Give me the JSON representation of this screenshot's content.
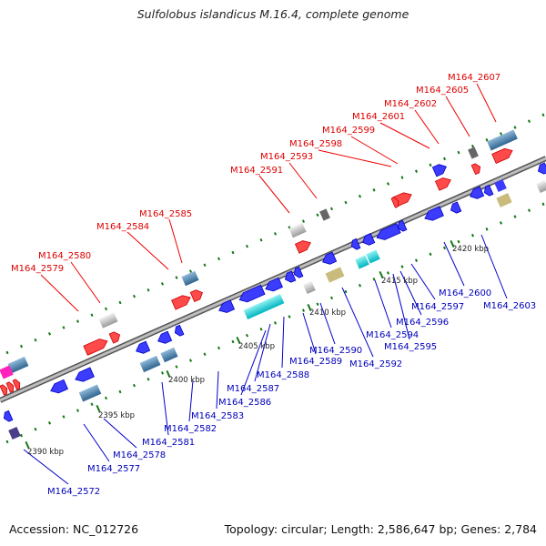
{
  "title": "Sulfolobus islandicus M.16.4, complete genome",
  "footer": {
    "accession": "Accession: NC_012726",
    "stats": "Topology: circular; Length: 2,586,647 bp; Genes: 2,784"
  },
  "colors": {
    "forward_label": "#dd0000",
    "reverse_label": "#0000bb",
    "backbone": "#888888",
    "forward_gene": "#ee0000",
    "reverse_gene": "#0000dd",
    "tick": "#117711"
  },
  "ticks": [
    "2390 kbp",
    "2395 kbp",
    "2400 kbp",
    "2405 kbp",
    "2410 kbp",
    "2415 kbp",
    "2420 kbp"
  ],
  "labels_forward": [
    "M164_2579",
    "M164_2580",
    "M164_2584",
    "M164_2585",
    "M164_2591",
    "M164_2593",
    "M164_2598",
    "M164_2599",
    "M164_2601",
    "M164_2602",
    "M164_2605",
    "M164_2607"
  ],
  "labels_reverse": [
    "M164_2572",
    "M164_2577",
    "M164_2578",
    "M164_2581",
    "M164_2582",
    "M164_2583",
    "M164_2586",
    "M164_2587",
    "M164_2588",
    "M164_2589",
    "M164_2590",
    "M164_2592",
    "M164_2594",
    "M164_2595",
    "M164_2596",
    "M164_2597",
    "M164_2600",
    "M164_2603"
  ]
}
